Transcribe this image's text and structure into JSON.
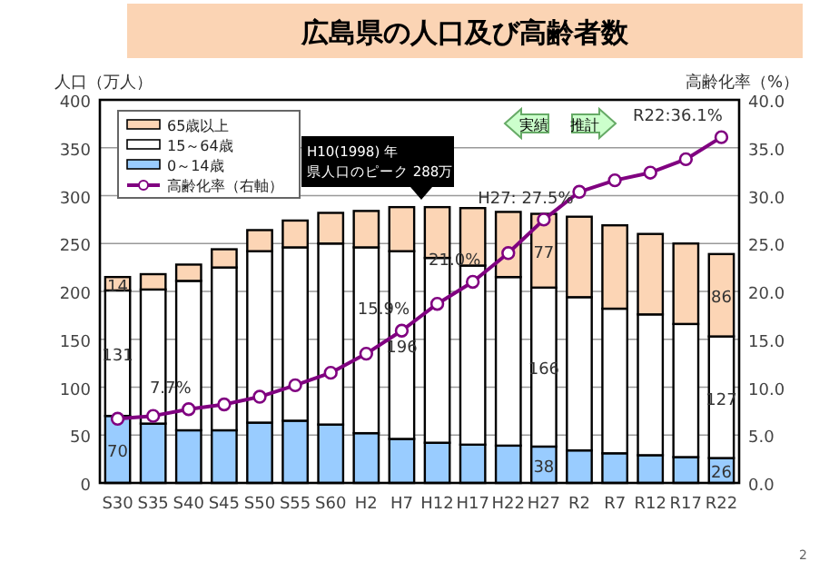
{
  "chart_data": {
    "type": "bar",
    "title": "広島県の人口及び高齢者数",
    "ylabel": "人口（万人）",
    "y2label": "高齢化率（%）",
    "categories": [
      "S30",
      "S35",
      "S40",
      "S45",
      "S50",
      "S55",
      "S60",
      "H2",
      "H7",
      "H12",
      "H17",
      "H22",
      "H27",
      "R2",
      "R7",
      "R12",
      "R17",
      "R22"
    ],
    "stacked": true,
    "series": [
      {
        "name": "0～14歳",
        "color": "#99ccff",
        "values": [
          70,
          62,
          55,
          55,
          63,
          65,
          61,
          52,
          46,
          42,
          40,
          39,
          38,
          34,
          31,
          29,
          27,
          26
        ],
        "value_labels": [
          "70",
          null,
          null,
          null,
          null,
          null,
          null,
          null,
          null,
          null,
          null,
          null,
          "38",
          null,
          null,
          null,
          null,
          "26"
        ]
      },
      {
        "name": "15～64歳",
        "color": "#ffffff",
        "values": [
          131,
          140,
          156,
          170,
          179,
          181,
          189,
          194,
          196,
          193,
          187,
          176,
          166,
          160,
          151,
          147,
          139,
          127
        ],
        "value_labels": [
          "131",
          null,
          null,
          null,
          null,
          null,
          null,
          null,
          "196",
          null,
          null,
          null,
          "166",
          null,
          null,
          null,
          null,
          "127"
        ]
      },
      {
        "name": "65歳以上",
        "color": "#fcd5b5",
        "values": [
          14,
          16,
          17,
          19,
          22,
          28,
          32,
          38,
          46,
          53,
          60,
          68,
          77,
          84,
          87,
          84,
          84,
          86
        ],
        "value_labels": [
          "14",
          null,
          null,
          null,
          null,
          null,
          null,
          null,
          null,
          null,
          null,
          null,
          "77",
          null,
          null,
          null,
          null,
          "86"
        ]
      },
      {
        "name": "高齢化率（右軸）",
        "type": "line",
        "axis": "y2",
        "color": "#800080",
        "marker": "circle",
        "values": [
          6.7,
          7.0,
          7.7,
          8.2,
          9.0,
          10.2,
          11.5,
          13.5,
          15.9,
          18.7,
          21.0,
          24.0,
          27.5,
          30.4,
          31.6,
          32.4,
          33.8,
          36.1
        ],
        "value_labels": [
          null,
          null,
          "7.7%",
          null,
          null,
          null,
          null,
          null,
          "15.9%",
          null,
          "21.0%",
          null,
          "H27: 27.5%",
          null,
          null,
          null,
          null,
          "R22:36.1%"
        ]
      }
    ],
    "ylim": [
      0,
      400
    ],
    "yticks": [
      0,
      50,
      100,
      150,
      200,
      250,
      300,
      350,
      400
    ],
    "y2lim": [
      0,
      40
    ],
    "y2ticks": [
      {
        "value": 0,
        "label": "0.0"
      },
      {
        "value": 5,
        "label": "5.0"
      },
      {
        "value": 10,
        "label": "10.0"
      },
      {
        "value": 15,
        "label": "15.0"
      },
      {
        "value": 20,
        "label": "20.0"
      },
      {
        "value": 25,
        "label": "25.0"
      },
      {
        "value": 30,
        "label": "30.0"
      },
      {
        "value": 35,
        "label": "35.0"
      },
      {
        "value": 40,
        "label": "40.0"
      }
    ],
    "grid": "y",
    "legend": "top left",
    "annotations": [
      "H10(1998) 年",
      "県人口のピーク 288万",
      "実績",
      "推計",
      "2"
    ]
  }
}
